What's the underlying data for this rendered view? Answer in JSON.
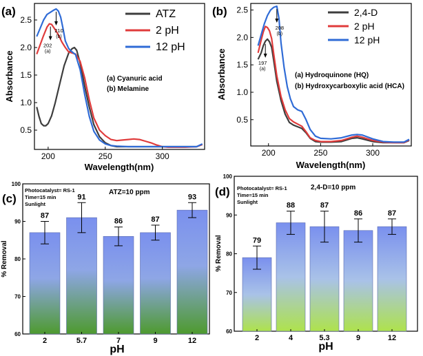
{
  "chart_data": [
    {
      "panel_label": "(a)",
      "type": "line",
      "xlabel": "Wavelength(nm)",
      "ylabel": "Absorbance",
      "xlim": [
        188,
        337
      ],
      "ylim": [
        0.15,
        2.8
      ],
      "xticks": [
        200,
        250,
        300
      ],
      "yticks": [
        0.5,
        1.0,
        1.5,
        2.0,
        2.5
      ],
      "ytick_labels": [
        "0.5",
        "1.0",
        "1.5",
        "2.0",
        "2.5"
      ],
      "legend": "top-right",
      "series": [
        {
          "name": "ATZ",
          "color": "#3d3d3d",
          "x": [
            190,
            192,
            194,
            196,
            198,
            200,
            203,
            206,
            210,
            214,
            218,
            221,
            223,
            225,
            228,
            232,
            236,
            240,
            245,
            250,
            255,
            260,
            270,
            280,
            290,
            300,
            310,
            320,
            330,
            335
          ],
          "y": [
            0.92,
            0.75,
            0.62,
            0.58,
            0.58,
            0.62,
            0.76,
            0.98,
            1.33,
            1.67,
            1.9,
            1.98,
            2.0,
            1.95,
            1.72,
            1.3,
            0.92,
            0.6,
            0.38,
            0.27,
            0.22,
            0.2,
            0.2,
            0.2,
            0.2,
            0.2,
            0.2,
            0.2,
            0.2,
            0.24
          ]
        },
        {
          "name": "2 pH",
          "color": "#e03b3b",
          "x": [
            190,
            193,
            196,
            199,
            201,
            203,
            206,
            209,
            212,
            215,
            218,
            221,
            224,
            228,
            232,
            236,
            240,
            245,
            250,
            255,
            260,
            265,
            270,
            275,
            280,
            285,
            290,
            295,
            300,
            305,
            310,
            320,
            330,
            335
          ],
          "y": [
            1.88,
            2.05,
            2.22,
            2.37,
            2.43,
            2.42,
            2.33,
            2.23,
            2.1,
            2.0,
            1.92,
            1.9,
            1.88,
            1.75,
            1.45,
            1.05,
            0.72,
            0.5,
            0.4,
            0.33,
            0.31,
            0.32,
            0.33,
            0.34,
            0.33,
            0.3,
            0.27,
            0.23,
            0.2,
            0.19,
            0.19,
            0.19,
            0.2,
            0.24
          ]
        },
        {
          "name": "12 pH",
          "color": "#2f6bd6",
          "x": [
            190,
            193,
            196,
            199,
            202,
            205,
            207,
            209,
            211,
            213,
            215,
            218,
            221,
            224,
            228,
            232,
            236,
            240,
            245,
            250,
            255,
            260,
            270,
            280,
            290,
            300,
            310,
            320,
            330,
            335
          ],
          "y": [
            2.2,
            2.35,
            2.5,
            2.6,
            2.64,
            2.68,
            2.7,
            2.66,
            2.55,
            2.35,
            2.12,
            1.98,
            1.92,
            1.87,
            1.6,
            1.15,
            0.75,
            0.48,
            0.32,
            0.25,
            0.22,
            0.21,
            0.2,
            0.2,
            0.2,
            0.2,
            0.2,
            0.2,
            0.2,
            0.25
          ]
        }
      ],
      "annotations": [
        {
          "text": "202",
          "sub": "(a)",
          "x": 202,
          "y": 2.43
        },
        {
          "text": "210",
          "sub": "(b)",
          "x": 207,
          "y": 2.7
        }
      ],
      "notes": [
        "(a) Cyanuric acid",
        "(b) Melamine"
      ]
    },
    {
      "panel_label": "(b)",
      "type": "line",
      "xlabel": "Wavelength(nm)",
      "ylabel": "Absorbance",
      "xlim": [
        183,
        337
      ],
      "ylim": [
        0.02,
        2.62
      ],
      "xticks": [
        200,
        250,
        300
      ],
      "yticks": [
        0.5,
        1.0,
        1.5,
        2.0,
        2.5
      ],
      "ytick_labels": [
        "0.5",
        "1.0",
        "1.5",
        "2.0",
        "2.5"
      ],
      "legend": "top-right",
      "series": [
        {
          "name": "2,4-D",
          "color": "#3d3d3d",
          "x": [
            190,
            193,
            195,
            197,
            199,
            201,
            203,
            205,
            208,
            212,
            216,
            220,
            224,
            228,
            232,
            236,
            240,
            245,
            250,
            260,
            270,
            280,
            285,
            290,
            300,
            310,
            320,
            330,
            335
          ],
          "y": [
            1.6,
            1.72,
            1.85,
            1.93,
            1.97,
            1.92,
            1.82,
            1.58,
            1.2,
            0.85,
            0.6,
            0.45,
            0.4,
            0.37,
            0.34,
            0.26,
            0.16,
            0.1,
            0.09,
            0.09,
            0.1,
            0.16,
            0.17,
            0.15,
            0.1,
            0.08,
            0.08,
            0.08,
            0.12
          ]
        },
        {
          "name": "2 pH",
          "color": "#e03b3b",
          "x": [
            190,
            193,
            195,
            197,
            199,
            201,
            203,
            205,
            208,
            212,
            216,
            220,
            224,
            228,
            232,
            236,
            240,
            245,
            250,
            260,
            270,
            280,
            285,
            290,
            300,
            310,
            320,
            330,
            335
          ],
          "y": [
            1.72,
            1.95,
            2.1,
            2.2,
            2.18,
            2.12,
            1.98,
            1.7,
            1.3,
            0.92,
            0.68,
            0.52,
            0.46,
            0.42,
            0.38,
            0.28,
            0.17,
            0.12,
            0.1,
            0.1,
            0.12,
            0.18,
            0.2,
            0.18,
            0.12,
            0.09,
            0.08,
            0.08,
            0.13
          ]
        },
        {
          "name": "12 pH",
          "color": "#2f6bd6",
          "x": [
            190,
            193,
            196,
            199,
            202,
            205,
            208,
            210,
            212,
            215,
            218,
            221,
            224,
            228,
            232,
            236,
            240,
            245,
            250,
            260,
            270,
            280,
            285,
            290,
            300,
            310,
            320,
            330,
            335
          ],
          "y": [
            1.85,
            2.05,
            2.25,
            2.4,
            2.5,
            2.55,
            2.57,
            2.35,
            1.9,
            1.45,
            1.1,
            0.88,
            0.74,
            0.68,
            0.65,
            0.5,
            0.32,
            0.2,
            0.16,
            0.15,
            0.17,
            0.22,
            0.23,
            0.22,
            0.15,
            0.1,
            0.09,
            0.09,
            0.14
          ]
        }
      ],
      "annotations": [
        {
          "text": "197",
          "sub": "(a)",
          "x": 197,
          "y": 1.93
        },
        {
          "text": "208",
          "sub": "(b)",
          "x": 208,
          "y": 2.57
        }
      ],
      "notes": [
        "(a) Hydroquinone (HQ)",
        "(b) Hydroxycarboxylic acid (HCA)"
      ]
    },
    {
      "panel_label": "(c)",
      "type": "bar",
      "title": "ATZ=10 ppm",
      "xlabel": "pH",
      "ylabel": "% Removal",
      "categories": [
        "2",
        "5.7",
        "7",
        "9",
        "12"
      ],
      "values": [
        87,
        91,
        86,
        87,
        93
      ],
      "value_labels": [
        "87",
        "91",
        "86",
        "87",
        "93"
      ],
      "errors": [
        3,
        4,
        2.5,
        2,
        2
      ],
      "ylim": [
        60,
        100
      ],
      "yticks": [
        60,
        70,
        80,
        90,
        100
      ],
      "conditions": [
        "Photocatalyst= RS-1",
        "Time=15 min",
        "Sunlight"
      ]
    },
    {
      "panel_label": "(d)",
      "type": "bar",
      "title": "2,4-D=10 ppm",
      "xlabel": "pH",
      "ylabel": "% Removal",
      "categories": [
        "2",
        "4",
        "5.3",
        "9",
        "12"
      ],
      "values": [
        79,
        88,
        87,
        86,
        87
      ],
      "value_labels": [
        "79",
        "88",
        "87",
        "86",
        "87"
      ],
      "errors": [
        3,
        3,
        4,
        3,
        2
      ],
      "ylim": [
        60,
        100
      ],
      "yticks": [
        60,
        70,
        80,
        90,
        100
      ],
      "conditions": [
        "Photocatalyst= RS-1",
        "Time=15 min",
        "Sunlight"
      ]
    }
  ]
}
